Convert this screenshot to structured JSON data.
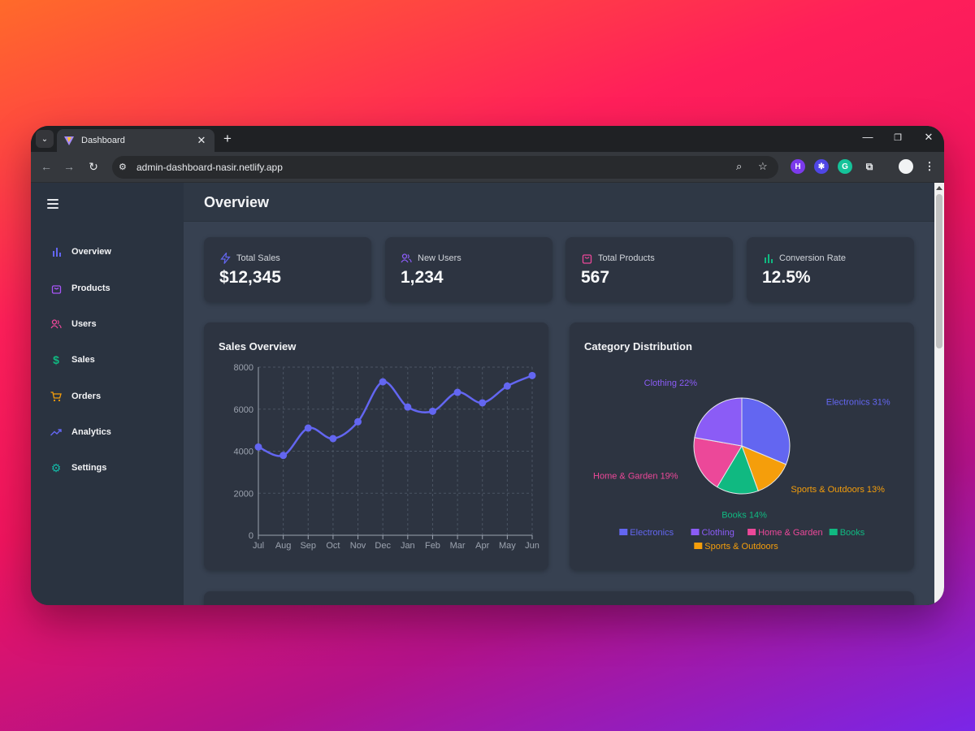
{
  "browser": {
    "tab_title": "Dashboard",
    "url": "admin-dashboard-nasir.netlify.app"
  },
  "sidebar": {
    "items": [
      {
        "label": "Overview",
        "icon": "bar-chart-icon",
        "color": "#6366f1"
      },
      {
        "label": "Products",
        "icon": "shopping-bag-icon",
        "color": "#a855f7"
      },
      {
        "label": "Users",
        "icon": "users-icon",
        "color": "#ec4899"
      },
      {
        "label": "Sales",
        "icon": "dollar-icon",
        "color": "#10b981"
      },
      {
        "label": "Orders",
        "icon": "shopping-cart-icon",
        "color": "#f59e0b"
      },
      {
        "label": "Analytics",
        "icon": "trending-up-icon",
        "color": "#6366f1"
      },
      {
        "label": "Settings",
        "icon": "gear-icon",
        "color": "#14b8a6"
      }
    ]
  },
  "header": {
    "title": "Overview"
  },
  "stats": [
    {
      "label": "Total Sales",
      "value": "$12,345",
      "icon": "zap-icon",
      "color": "#6366f1"
    },
    {
      "label": "New Users",
      "value": "1,234",
      "icon": "users-icon",
      "color": "#8b5cf6"
    },
    {
      "label": "Total Products",
      "value": "567",
      "icon": "shopping-bag-icon",
      "color": "#ec4899"
    },
    {
      "label": "Conversion Rate",
      "value": "12.5%",
      "icon": "bar-chart-icon",
      "color": "#10b981"
    }
  ],
  "chart_data": [
    {
      "type": "line",
      "title": "Sales Overview",
      "x": [
        "Jul",
        "Aug",
        "Sep",
        "Oct",
        "Nov",
        "Dec",
        "Jan",
        "Feb",
        "Mar",
        "Apr",
        "May",
        "Jun"
      ],
      "values": [
        4200,
        3800,
        5100,
        4600,
        5400,
        7300,
        6100,
        5900,
        6800,
        6300,
        7100,
        7600
      ],
      "ylim": [
        0,
        8000
      ],
      "yticks": [
        0,
        2000,
        4000,
        6000,
        8000
      ],
      "grid": true,
      "color": "#6366f1"
    },
    {
      "type": "pie",
      "title": "Category Distribution",
      "slices": [
        {
          "label": "Electronics",
          "value": 31,
          "color": "#6366f1"
        },
        {
          "label": "Sports & Outdoors",
          "value": 13,
          "color": "#f59e0b"
        },
        {
          "label": "Books",
          "value": 14,
          "color": "#10b981"
        },
        {
          "label": "Home & Garden",
          "value": 19,
          "color": "#ec4899"
        },
        {
          "label": "Clothing",
          "value": 22,
          "color": "#8b5cf6"
        }
      ],
      "legend": [
        "Electronics",
        "Clothing",
        "Home & Garden",
        "Books",
        "Sports & Outdoors"
      ],
      "legend_position": "bottom"
    }
  ]
}
